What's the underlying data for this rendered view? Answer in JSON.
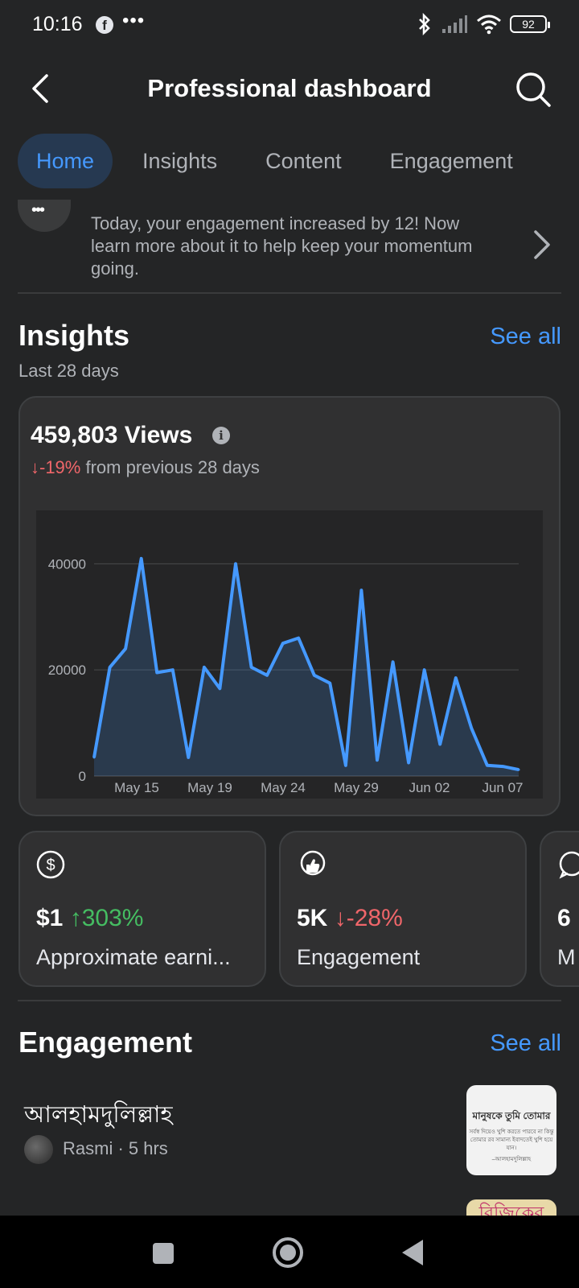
{
  "status_bar": {
    "time": "10:16",
    "battery": "92",
    "icons": [
      "facebook-icon",
      "more-dots-icon",
      "bluetooth-icon",
      "signal-icon",
      "wifi-icon",
      "battery-icon"
    ]
  },
  "header": {
    "title": "Professional dashboard"
  },
  "tabs": [
    {
      "label": "Home",
      "active": true
    },
    {
      "label": "Insights",
      "active": false
    },
    {
      "label": "Content",
      "active": false
    },
    {
      "label": "Engagement",
      "active": false
    }
  ],
  "notice": {
    "text": "Today, your engagement increased by 12! Now learn more about it to help keep your momentum going."
  },
  "insights": {
    "title": "Insights",
    "see_all": "See all",
    "period": "Last 28 days",
    "views_total": "459,803 Views",
    "change": "↓-19%",
    "change_suffix": "from previous 28 days"
  },
  "chart_data": {
    "type": "area",
    "x_tick_labels": [
      "May 15",
      "May 19",
      "May 24",
      "May 29",
      "Jun 02",
      "Jun 07"
    ],
    "y_ticks": [
      0,
      20000,
      40000
    ],
    "ylim": [
      0,
      44000
    ],
    "grid": true,
    "color": "#4599ff",
    "series": [
      {
        "values": [
          3500,
          20500,
          24000,
          41000,
          19500,
          20000,
          3500,
          20500,
          16500,
          40000,
          20500,
          19000,
          25000,
          26000,
          19000,
          17500,
          2000,
          35000,
          3000,
          21500,
          2500,
          20000,
          6000,
          18500,
          9000,
          2000,
          1800,
          1200
        ]
      }
    ]
  },
  "metrics": [
    {
      "icon": "dollar-icon",
      "value": "$1",
      "change": "↑303%",
      "direction": "up",
      "label": "Approximate earni..."
    },
    {
      "icon": "thumbs-up-icon",
      "value": "5K",
      "change": "↓-28%",
      "direction": "down",
      "label": "Engagement"
    },
    {
      "icon": "comment-icon",
      "value": "6",
      "change": "",
      "direction": "",
      "label": "M"
    }
  ],
  "engagement": {
    "title": "Engagement",
    "see_all": "See all",
    "posts": [
      {
        "title": "আলহামদুলিল্লাহ",
        "meta": "Rasmi · 5 hrs",
        "thumb_heading": "মানুষকে তুমি তোমার",
        "thumb_text": "সর্বস্ব দিয়েও খুশি করতে পারবে না কিন্তু তোমার রব সামান্য ইবাদতেই খুশি হয়ে যান।",
        "thumb_footer": "–আলহামদুলিল্লাহ"
      }
    ],
    "next_thumb_text": "রিজিকের"
  }
}
